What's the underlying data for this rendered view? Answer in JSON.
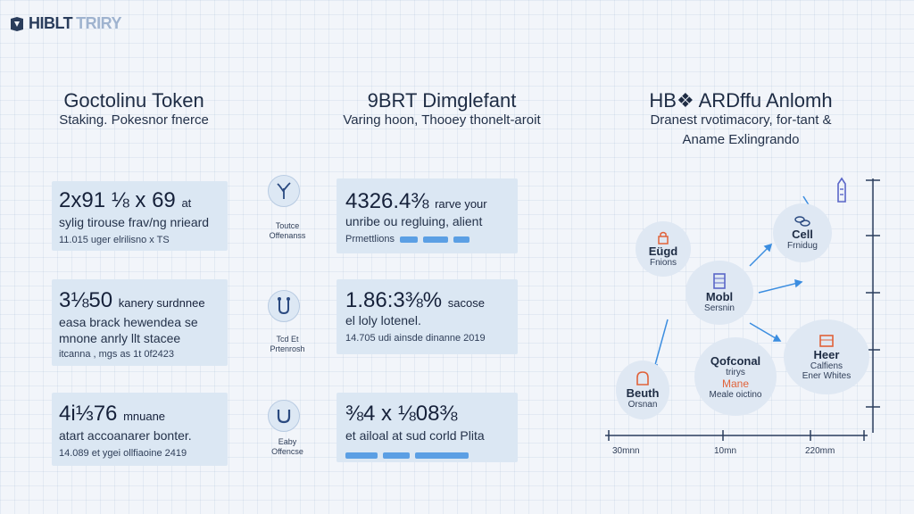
{
  "logo": {
    "text_a": "HIBLT",
    "text_b": "TRIRY"
  },
  "columns": [
    {
      "title": "Goctolinu Token",
      "subtitle": "Staking. Pokesnor fnerce"
    },
    {
      "title": "9BRT Dimglefant",
      "subtitle": "Varing hoon, Thooey thonelt-aroit"
    },
    {
      "title": "HB❖ ARDffu Anlomh",
      "subtitle": "Dranest rvotimacory, for-tant &",
      "subtitle2": "Aname Exlingrando"
    }
  ],
  "left_cards": [
    {
      "big": "2x91 ⅛ x 69",
      "big_small": "at",
      "line1": "sylig tirouse frav/ng nrieard",
      "line2": "11.015 uger elrilisno x TS"
    },
    {
      "big": "3⅛50",
      "big_small": "kanery surdnnee",
      "line1": "easa brack hewendea se",
      "line2": "mnone anrly llt stacee",
      "line3": "itcanna , mgs as 1t 0f2423"
    },
    {
      "big": "4i⅓76",
      "big_small": "mnuane",
      "line1": "atart accoanarer bonter.",
      "line2": "14.089 et ygei ollfiaoine 2419"
    }
  ],
  "icons": [
    {
      "label1": "Toutce",
      "label2": "Offenanss"
    },
    {
      "label1": "Tcd Et",
      "label2": "Prtenrosh"
    },
    {
      "label1": "Eaby",
      "label2": "Offencse"
    }
  ],
  "mid_cards": [
    {
      "big": "4326.4⅜",
      "big_small": "rarve your",
      "line1": "unribe ou regluing, alient",
      "line2": "Prmettlions"
    },
    {
      "big": "1.86:3⅜%",
      "big_small": "sacose",
      "line1": "el loly lotenel.",
      "line2": "14.705 udi ainsde dinanne 2019"
    },
    {
      "big": "⅜4 x ⅛08⅜",
      "big_small": "",
      "line1": "et ailoal at sud corld Plita",
      "line2": ""
    }
  ],
  "nodes": [
    {
      "title": "Eügd",
      "sub": "Fnions"
    },
    {
      "title": "Cell",
      "sub": "Frnidug"
    },
    {
      "title": "Mobl",
      "sub": "Sersnin"
    },
    {
      "title": "Qofconal",
      "sub": "trirys",
      "sub2": "Mane",
      "sub3": "Meale oictino"
    },
    {
      "title": "Heer",
      "sub": "Calfiens",
      "sub2": "Ener Whites"
    },
    {
      "title": "Beuth",
      "sub": "Orsnan"
    }
  ],
  "axis": {
    "labels": [
      "30mnn",
      "10mn",
      "220mm"
    ]
  },
  "colors": {
    "accent": "#3b8de0",
    "card": "#dbe7f3",
    "orange": "#e0623a",
    "purple": "#5a66c8"
  }
}
